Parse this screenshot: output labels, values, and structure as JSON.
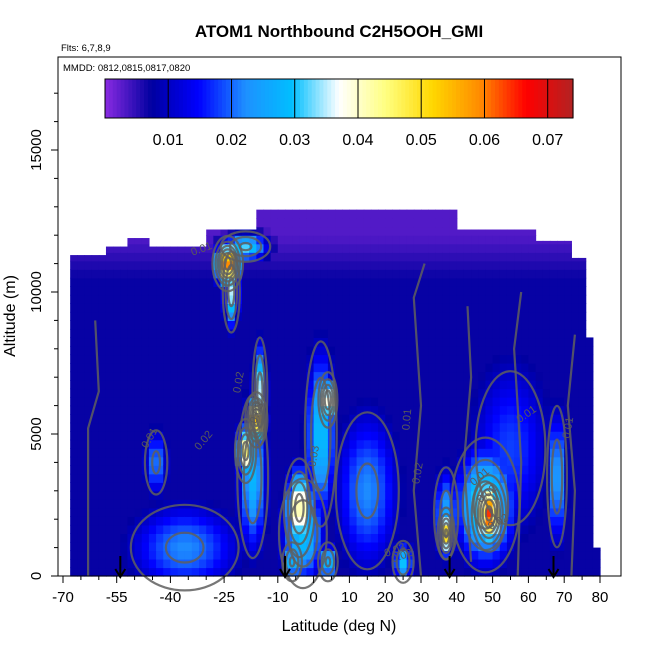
{
  "chart_data": {
    "type": "heatmap",
    "title": "ATOM1 Northbound C2H5OOH_GMI",
    "flights_note": "Flts: 6,7,8,9",
    "dates_note": "MMDD: 0812,0815,0817,0820",
    "xlabel": "Latitude (deg N)",
    "ylabel": "Altitude (m)",
    "xlim": [
      -70,
      82
    ],
    "ylim": [
      0,
      18000
    ],
    "x_ticks": [
      -70,
      -55,
      -40,
      -25,
      -10,
      0,
      10,
      20,
      30,
      40,
      50,
      60,
      70,
      80
    ],
    "y_ticks": [
      0,
      5000,
      10000,
      15000
    ],
    "colorbar": {
      "range": [
        0,
        0.074
      ],
      "ticks": [
        0.01,
        0.02,
        0.03,
        0.04,
        0.05,
        0.06,
        0.07
      ],
      "tick_labels": [
        "0.01",
        "0.02",
        "0.03",
        "0.04",
        "0.05",
        "0.06",
        "0.07"
      ],
      "colors": [
        "#8a2be2",
        "#0000a0",
        "#0000ff",
        "#1e90ff",
        "#00bfff",
        "#ffffff",
        "#ffff80",
        "#ffd700",
        "#ff8c00",
        "#ff0000",
        "#b22222"
      ]
    },
    "contour_labels": [
      "0.01",
      "0.02",
      "0.03",
      "0.01",
      "0.02",
      "0.03",
      "0.01",
      "0.02",
      "0.01",
      "0.01",
      "0.02",
      "0.02",
      "0.03",
      "0.02",
      "0.01"
    ],
    "flight_markers_lat": [
      -54,
      -8,
      38,
      67
    ],
    "background_value": 0.007,
    "hotspots": [
      {
        "lat": -24,
        "alt": 11000,
        "peak": 0.066,
        "sx": 2.2,
        "sy": 500
      },
      {
        "lat": -23,
        "alt": 10000,
        "peak": 0.035,
        "sx": 1.5,
        "sy": 900
      },
      {
        "lat": -19,
        "alt": 11600,
        "peak": 0.032,
        "sx": 4.5,
        "sy": 350
      },
      {
        "lat": -16,
        "alt": 5500,
        "peak": 0.066,
        "sx": 1.6,
        "sy": 500
      },
      {
        "lat": -19,
        "alt": 4400,
        "peak": 0.045,
        "sx": 1.7,
        "sy": 650
      },
      {
        "lat": -15,
        "alt": 6500,
        "peak": 0.035,
        "sx": 1.3,
        "sy": 1200
      },
      {
        "lat": -17,
        "alt": 3500,
        "peak": 0.028,
        "sx": 3.0,
        "sy": 2000
      },
      {
        "lat": 4,
        "alt": 6200,
        "peak": 0.048,
        "sx": 1.5,
        "sy": 550
      },
      {
        "lat": 2,
        "alt": 5000,
        "peak": 0.03,
        "sx": 3.0,
        "sy": 2200
      },
      {
        "lat": -4,
        "alt": 2400,
        "peak": 0.045,
        "sx": 2.5,
        "sy": 1000
      },
      {
        "lat": -3,
        "alt": 1500,
        "peak": 0.03,
        "sx": 4.5,
        "sy": 1300
      },
      {
        "lat": -6,
        "alt": 500,
        "peak": 0.032,
        "sx": 1.8,
        "sy": 450
      },
      {
        "lat": 4,
        "alt": 500,
        "peak": 0.032,
        "sx": 1.8,
        "sy": 450
      },
      {
        "lat": 15,
        "alt": 3000,
        "peak": 0.022,
        "sx": 7.0,
        "sy": 2200
      },
      {
        "lat": 25,
        "alt": 500,
        "peak": 0.03,
        "sx": 2.0,
        "sy": 500
      },
      {
        "lat": 37,
        "alt": 1500,
        "peak": 0.052,
        "sx": 1.3,
        "sy": 500
      },
      {
        "lat": 37,
        "alt": 2200,
        "peak": 0.025,
        "sx": 2.5,
        "sy": 1200
      },
      {
        "lat": 49,
        "alt": 2200,
        "peak": 0.064,
        "sx": 2.5,
        "sy": 700
      },
      {
        "lat": 48,
        "alt": 2500,
        "peak": 0.035,
        "sx": 6.0,
        "sy": 1500
      },
      {
        "lat": 68,
        "alt": 3500,
        "peak": 0.026,
        "sx": 2.0,
        "sy": 1800
      },
      {
        "lat": -44,
        "alt": 4000,
        "peak": 0.022,
        "sx": 2.5,
        "sy": 900
      },
      {
        "lat": -36,
        "alt": 1000,
        "peak": 0.022,
        "sx": 12.0,
        "sy": 1200
      },
      {
        "lat": 55,
        "alt": 4500,
        "peak": 0.018,
        "sx": 9.0,
        "sy": 2500
      }
    ]
  }
}
